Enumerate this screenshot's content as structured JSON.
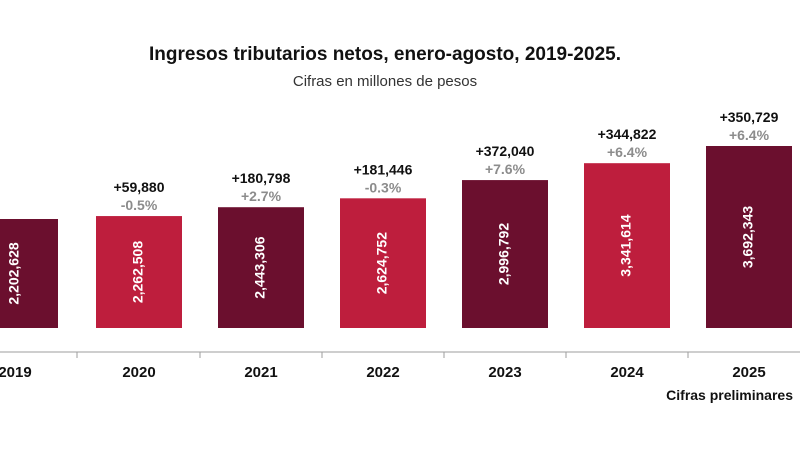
{
  "chart_data": {
    "type": "bar",
    "title": "Ingresos tributarios netos, enero-agosto, 2019-2025.",
    "subtitle": "Cifras en millones de pesos",
    "note": "Cifras preliminares",
    "categories": [
      "2019",
      "2020",
      "2021",
      "2022",
      "2023",
      "2024",
      "2025"
    ],
    "values": [
      2202628,
      2262508,
      2443306,
      2624752,
      2996792,
      3341614,
      3692343
    ],
    "value_labels": [
      "2,202,628",
      "2,262,508",
      "2,443,306",
      "2,624,752",
      "2,996,792",
      "3,341,614",
      "3,692,343"
    ],
    "abs_change_labels": [
      "",
      "+59,880",
      "+180,798",
      "+181,446",
      "+372,040",
      "+344,822",
      "+350,729"
    ],
    "pct_change_labels": [
      "",
      "-0.5%",
      "+2.7%",
      "-0.3%",
      "+7.6%",
      "+6.4%",
      "+6.4%"
    ],
    "bar_colors": [
      "#6b0f2e",
      "#be1e3d",
      "#6b0f2e",
      "#be1e3d",
      "#6b0f2e",
      "#be1e3d",
      "#6b0f2e"
    ],
    "pct_color": "#8c8c8c",
    "axis_color": "#9e9e9e",
    "xlabel": "",
    "ylabel": "",
    "ylim": [
      0,
      3800000
    ]
  }
}
